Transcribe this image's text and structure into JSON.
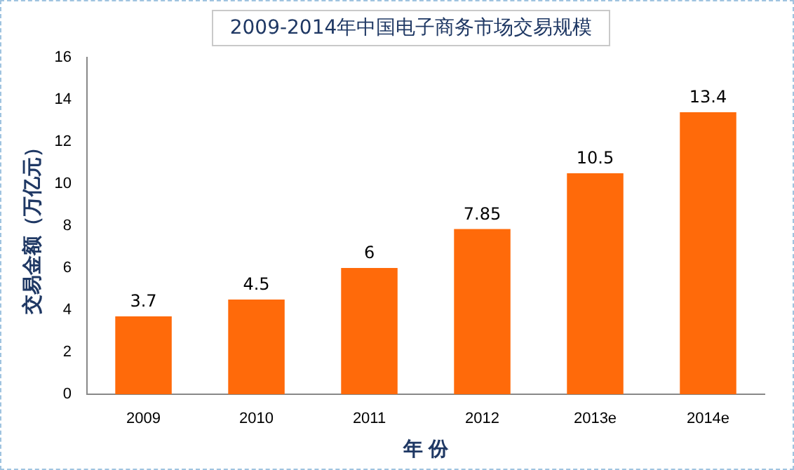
{
  "chart_data": {
    "type": "bar",
    "title": "2009-2014年中国电子商务市场交易规模",
    "xlabel": "年 份",
    "ylabel": "交易金额（万亿元）",
    "categories": [
      "2009",
      "2010",
      "2011",
      "2012",
      "2013e",
      "2014e"
    ],
    "values": [
      3.7,
      4.5,
      6,
      7.85,
      10.5,
      13.4
    ],
    "color": "#ff6a0a",
    "ylim": [
      0,
      16
    ],
    "yticks": [
      0,
      2,
      4,
      6,
      8,
      10,
      12,
      14,
      16
    ],
    "grid": false,
    "data_labels": true
  }
}
